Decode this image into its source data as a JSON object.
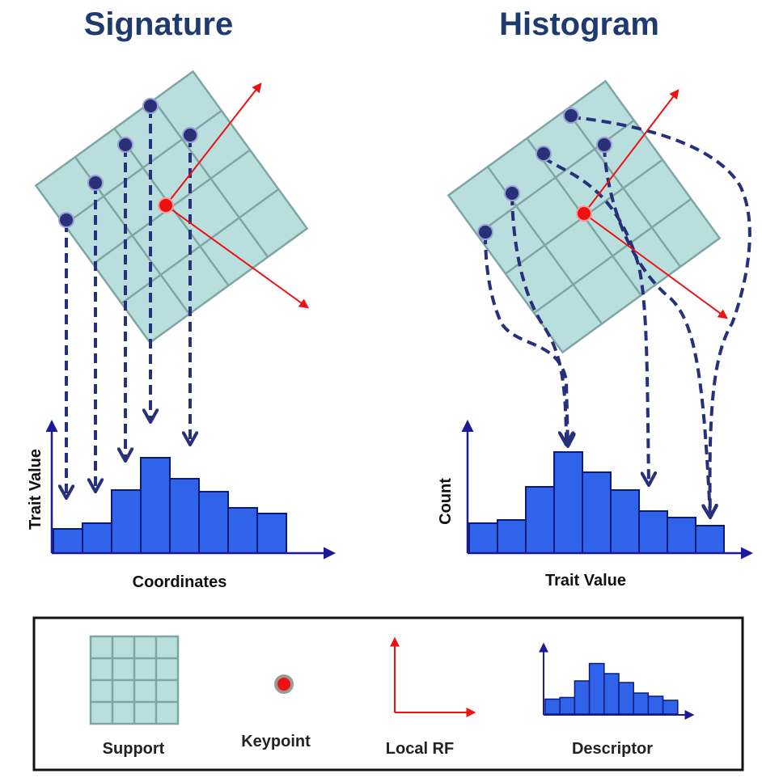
{
  "titles": {
    "signature": "Signature",
    "histogram": "Histogram"
  },
  "signature_panel": {
    "y_label": "Trait Value",
    "x_label": "Coordinates",
    "bar_values": [
      30,
      37,
      78,
      118,
      92,
      76,
      56,
      49
    ]
  },
  "histogram_panel": {
    "y_label": "Count",
    "x_label": "Trait Value",
    "bar_values": [
      37,
      41,
      82,
      125,
      100,
      78,
      52,
      44,
      34
    ]
  },
  "legend": {
    "support": "Support",
    "keypoint": "Keypoint",
    "local_rf": "Local RF",
    "descriptor": "Descriptor"
  },
  "colors": {
    "title": "#1f3a6e",
    "grid_fill": "#b8dede",
    "grid_stroke": "#7fa5a5",
    "point": "#2a2f7a",
    "keypoint": "#ee1111",
    "axis": "#1a1a9a",
    "bar_fill": "#2f63ea",
    "bar_stroke": "#0a1a7a",
    "arrow_dashed": "#27307a",
    "frame": "#111111"
  }
}
